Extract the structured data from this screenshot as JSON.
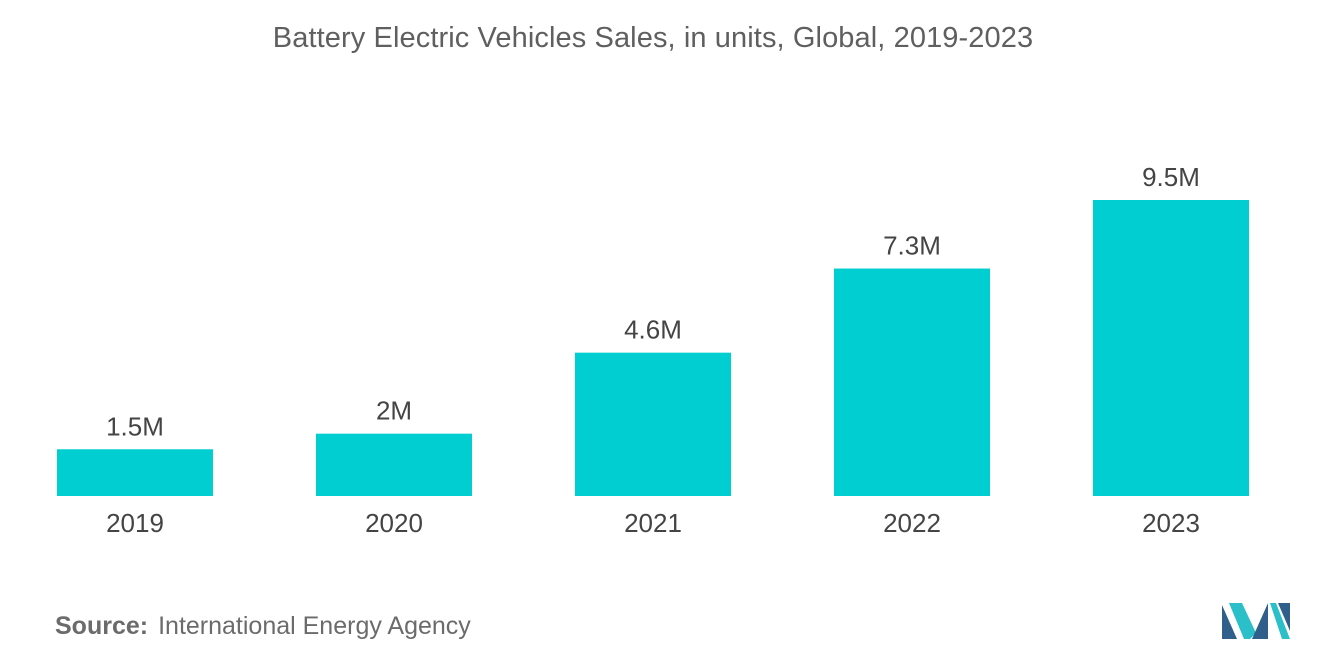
{
  "chart_data": {
    "type": "bar",
    "title": "Battery Electric Vehicles Sales, in units, Global, 2019-2023",
    "categories": [
      "2019",
      "2020",
      "2021",
      "2022",
      "2023"
    ],
    "values": [
      1.5,
      2,
      4.6,
      7.3,
      9.5
    ],
    "value_labels": [
      "1.5M",
      "2M",
      "4.6M",
      "7.3M",
      "9.5M"
    ],
    "unit": "M units",
    "xlabel": "",
    "ylabel": "",
    "ylim": [
      0,
      9.5
    ],
    "grid": false,
    "legend": "none",
    "bar_color": "#00ced1"
  },
  "source": {
    "label": "Source:",
    "text": "International Energy Agency"
  },
  "colors": {
    "title": "#5f5f5f",
    "tick_text": "#444444",
    "logo_dark": "#2f5f8a",
    "logo_light": "#2bbfc9"
  }
}
